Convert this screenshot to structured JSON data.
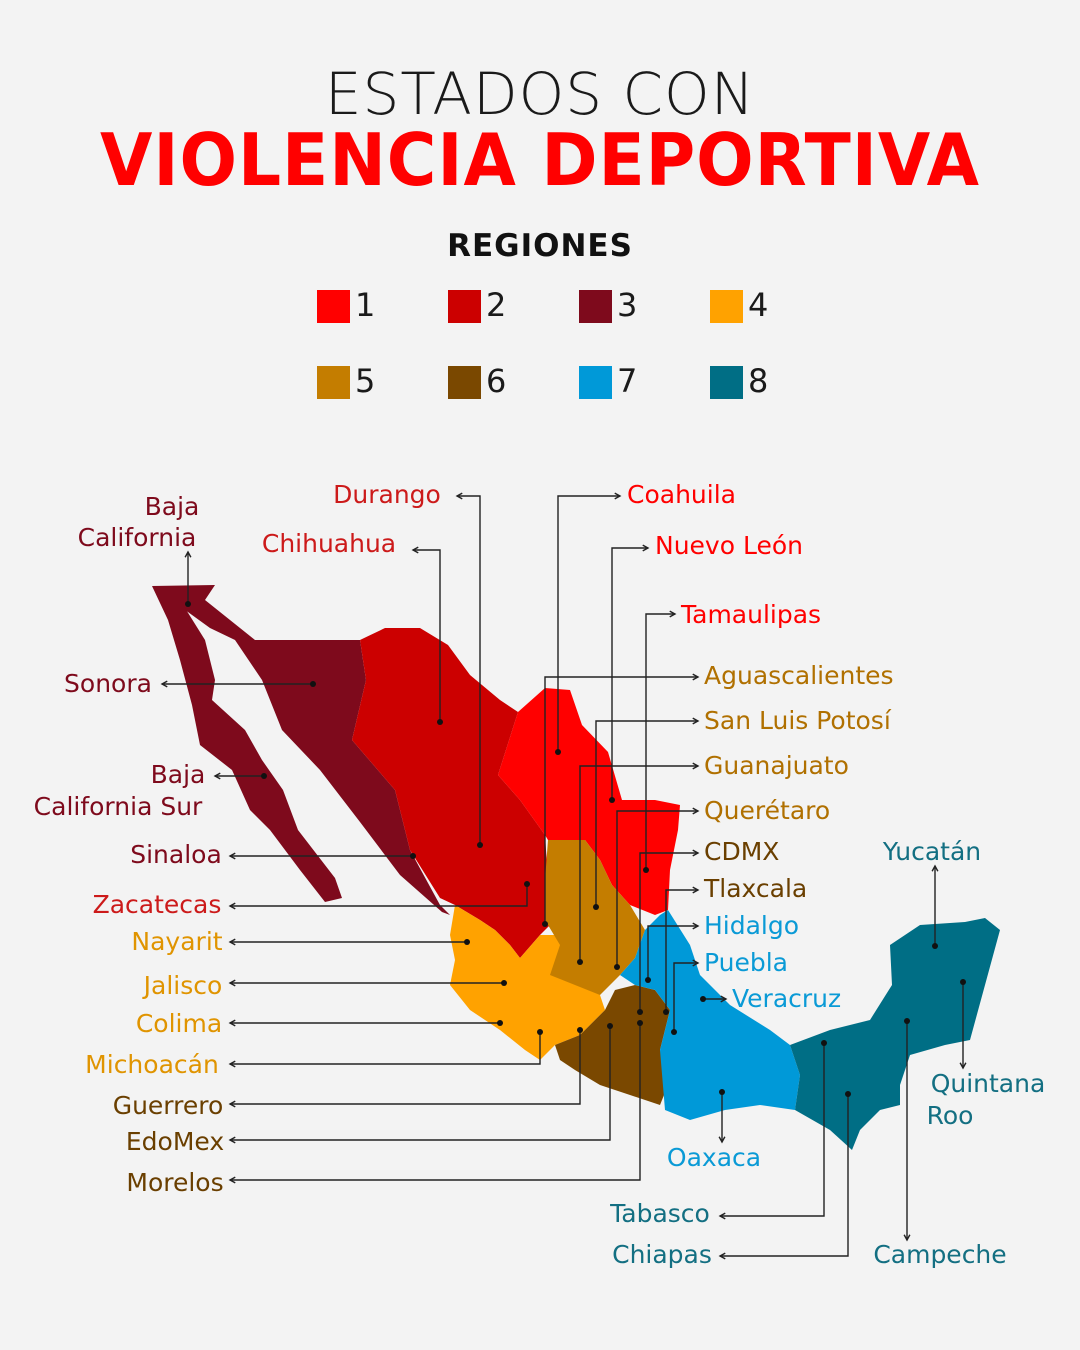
{
  "header": {
    "title_line1": "ESTADOS CON",
    "title_line2": "VIOLENCIA DEPORTIVA"
  },
  "legend": {
    "title": "REGIONES",
    "items": [
      {
        "label": "1",
        "color": "#ff0000"
      },
      {
        "label": "2",
        "color": "#cc0000"
      },
      {
        "label": "3",
        "color": "#7e0a1c"
      },
      {
        "label": "4",
        "color": "#ffa200"
      },
      {
        "label": "5",
        "color": "#c47d00"
      },
      {
        "label": "6",
        "color": "#7a4800"
      },
      {
        "label": "7",
        "color": "#0099d8"
      },
      {
        "label": "8",
        "color": "#006e85"
      }
    ]
  },
  "states": [
    {
      "name": "Baja California",
      "region": 3
    },
    {
      "name": "Sonora",
      "region": 3
    },
    {
      "name": "Baja California Sur",
      "region": 3
    },
    {
      "name": "Sinaloa",
      "region": 3
    },
    {
      "name": "Chihuahua",
      "region": 2
    },
    {
      "name": "Durango",
      "region": 2
    },
    {
      "name": "Zacatecas",
      "region": 2
    },
    {
      "name": "Coahuila",
      "region": 1
    },
    {
      "name": "Nuevo León",
      "region": 1
    },
    {
      "name": "Tamaulipas",
      "region": 1
    },
    {
      "name": "Nayarit",
      "region": 4
    },
    {
      "name": "Jalisco",
      "region": 4
    },
    {
      "name": "Colima",
      "region": 4
    },
    {
      "name": "Michoacán",
      "region": 4
    },
    {
      "name": "Aguascalientes",
      "region": 5
    },
    {
      "name": "San Luis Potosí",
      "region": 5
    },
    {
      "name": "Guanajuato",
      "region": 5
    },
    {
      "name": "Querétaro",
      "region": 5
    },
    {
      "name": "CDMX",
      "region": 6
    },
    {
      "name": "Tlaxcala",
      "region": 6
    },
    {
      "name": "Guerrero",
      "region": 6
    },
    {
      "name": "EdoMex",
      "region": 6
    },
    {
      "name": "Morelos",
      "region": 6
    },
    {
      "name": "Hidalgo",
      "region": 7
    },
    {
      "name": "Puebla",
      "region": 7
    },
    {
      "name": "Veracruz",
      "region": 7
    },
    {
      "name": "Oaxaca",
      "region": 7
    },
    {
      "name": "Yucatán",
      "region": 8
    },
    {
      "name": "Quintana Roo",
      "region": 8
    },
    {
      "name": "Tabasco",
      "region": 8
    },
    {
      "name": "Chiapas",
      "region": 8
    },
    {
      "name": "Campeche",
      "region": 8
    }
  ]
}
